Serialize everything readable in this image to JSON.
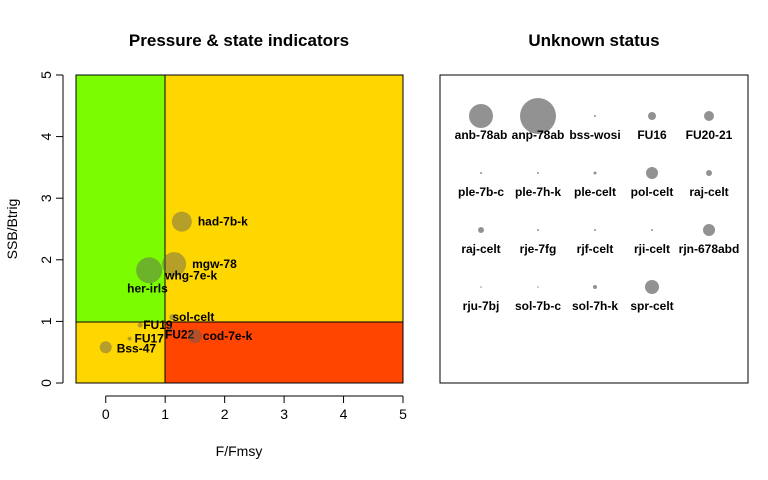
{
  "chart_data": [
    {
      "type": "scatter",
      "title": "Pressure & state indicators",
      "xlabel": "F/Fmsy",
      "ylabel": "SSB/Btrig",
      "xlim": [
        -0.5,
        5
      ],
      "ylim": [
        0,
        5
      ],
      "xticks": [
        "0",
        "1",
        "2",
        "3",
        "4",
        "5"
      ],
      "yticks": [
        "0",
        "1",
        "2",
        "3",
        "4",
        "5"
      ],
      "zones": [
        {
          "x": [
            -0.5,
            1
          ],
          "y": [
            1,
            5
          ],
          "color": "#7CFC00"
        },
        {
          "x": [
            1,
            5
          ],
          "y": [
            1,
            5
          ],
          "color": "#FFD700"
        },
        {
          "x": [
            -0.5,
            1
          ],
          "y": [
            0,
            1
          ],
          "color": "#FFD700"
        },
        {
          "x": [
            1,
            5
          ],
          "y": [
            0,
            1
          ],
          "color": "#FF4500"
        }
      ],
      "points": [
        {
          "label": "had-7b-k",
          "x": 1.28,
          "y": 2.62,
          "r": 10
        },
        {
          "label": "mgw-78",
          "x": 1.15,
          "y": 1.93,
          "r": 12
        },
        {
          "label": "whg-7e-k",
          "x": 0.73,
          "y": 1.83,
          "r": 13
        },
        {
          "label": "her-irls",
          "x": 0.73,
          "y": 1.83,
          "r": 0
        },
        {
          "label": "sol-celt",
          "x": 1.12,
          "y": 1.07,
          "r": 3
        },
        {
          "label": "FU19",
          "x": 0.58,
          "y": 0.94,
          "r": 2.5
        },
        {
          "label": "FU22",
          "x": 1.08,
          "y": 0.87,
          "r": 3
        },
        {
          "label": "FU17",
          "x": 0.4,
          "y": 0.72,
          "r": 2
        },
        {
          "label": "cod-7e-k",
          "x": 1.5,
          "y": 0.76,
          "r": 7
        },
        {
          "label": "Bss-47",
          "x": 0.0,
          "y": 0.58,
          "r": 6
        }
      ]
    },
    {
      "type": "scatter",
      "title": "Unknown status",
      "points": [
        {
          "label": "anb-78ab",
          "r": 12
        },
        {
          "label": "anp-78ab",
          "r": 18
        },
        {
          "label": "bss-wosi",
          "r": 1
        },
        {
          "label": "FU16",
          "r": 4
        },
        {
          "label": "FU20-21",
          "r": 5
        },
        {
          "label": "ple-7b-c",
          "r": 1
        },
        {
          "label": "ple-7h-k",
          "r": 1
        },
        {
          "label": "ple-celt",
          "r": 1.5
        },
        {
          "label": "pol-celt",
          "r": 6
        },
        {
          "label": "raj-celt",
          "r": 3
        },
        {
          "label": "raj-celt",
          "r": 3
        },
        {
          "label": "rje-7fg",
          "r": 1
        },
        {
          "label": "rjf-celt",
          "r": 1
        },
        {
          "label": "rji-celt",
          "r": 1
        },
        {
          "label": "rjn-678abd",
          "r": 6
        },
        {
          "label": "rju-7bj",
          "r": 0.8
        },
        {
          "label": "sol-7b-c",
          "r": 0.8
        },
        {
          "label": "sol-7h-k",
          "r": 2
        },
        {
          "label": "spr-celt",
          "r": 7
        }
      ]
    }
  ]
}
